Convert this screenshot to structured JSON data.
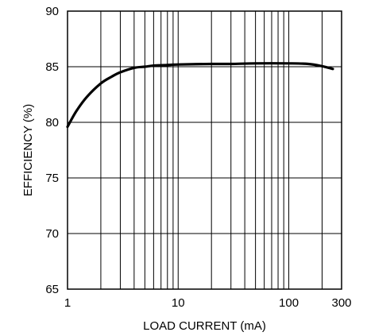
{
  "chart_data": {
    "type": "line",
    "title": "",
    "xlabel": "LOAD CURRENT (mA)",
    "ylabel": "EFFICIENCY (%)",
    "x_scale": "log",
    "xlim": [
      1,
      300
    ],
    "ylim": [
      65,
      90
    ],
    "grid": true,
    "x_ticks": [
      1,
      10,
      100,
      300
    ],
    "x_tick_labels": [
      "1",
      "10",
      "100",
      "300"
    ],
    "y_ticks": [
      65,
      70,
      75,
      80,
      85,
      90
    ],
    "y_tick_labels": [
      "65",
      "70",
      "75",
      "80",
      "85",
      "90"
    ],
    "series": [
      {
        "x": [
          1,
          1.2,
          1.5,
          2,
          2.5,
          3,
          4,
          5,
          6,
          8,
          10,
          20,
          30,
          50,
          100,
          150,
          200,
          250
        ],
        "y": [
          79.6,
          81.0,
          82.3,
          83.5,
          84.1,
          84.5,
          84.9,
          85.0,
          85.1,
          85.15,
          85.2,
          85.25,
          85.25,
          85.3,
          85.3,
          85.25,
          85.05,
          84.8
        ]
      }
    ],
    "colors": {
      "line": "#000000",
      "grid": "#000000",
      "background": "#ffffff"
    }
  }
}
